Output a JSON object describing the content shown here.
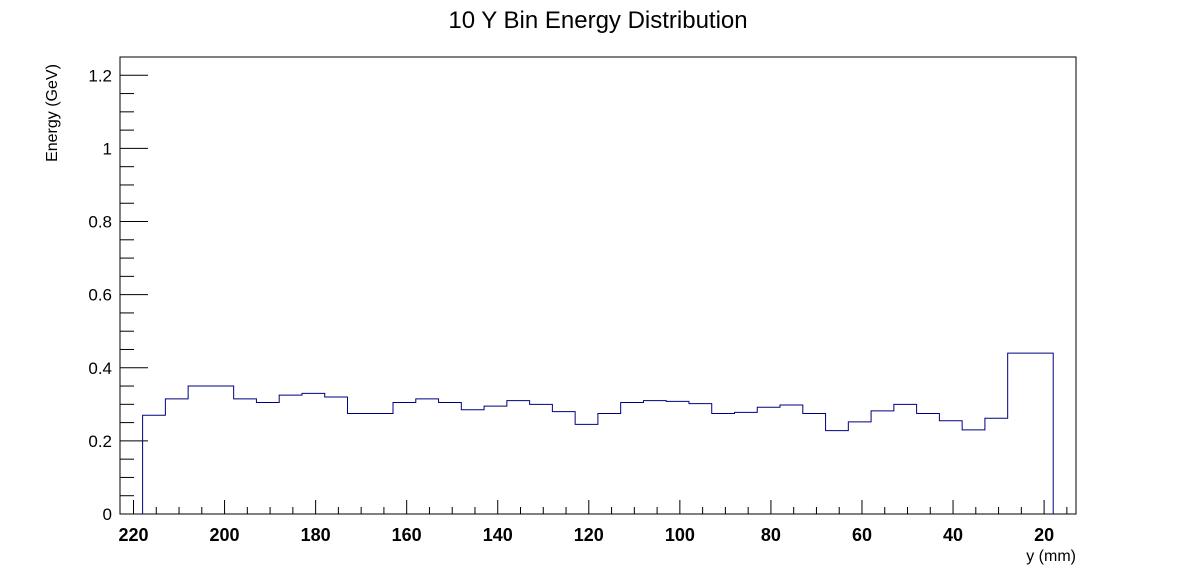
{
  "chart_data": {
    "type": "histogram",
    "title": "10 Y Bin Energy Distribution",
    "xlabel": "y (mm)",
    "ylabel": "Energy (GeV)",
    "x_reversed": true,
    "xlim": [
      220,
      10
    ],
    "ylim": [
      0,
      1.25
    ],
    "grid": false,
    "legend": "none",
    "line_color": "#000080",
    "x_ticks": [
      220,
      200,
      180,
      160,
      140,
      120,
      100,
      80,
      60,
      40,
      20
    ],
    "x_tick_labels": [
      "220",
      "200",
      "180",
      "160",
      "140",
      "120",
      "100",
      "80",
      "60",
      "40",
      "20"
    ],
    "y_ticks": [
      0,
      0.2,
      0.4,
      0.6,
      0.8,
      1,
      1.2
    ],
    "y_tick_labels": [
      "0",
      "0.2",
      "0.4",
      "0.6",
      "0.8",
      "1",
      "1.2"
    ],
    "bin_edges": [
      218,
      213,
      208,
      198,
      193,
      188,
      183,
      178,
      173,
      163,
      158,
      153,
      148,
      143,
      138,
      133,
      128,
      123,
      118,
      113,
      108,
      103,
      98,
      93,
      88,
      83,
      78,
      73,
      68,
      63,
      58,
      53,
      48,
      43,
      38,
      33,
      28,
      18
    ],
    "values": [
      0.27,
      0.315,
      0.35,
      0.315,
      0.305,
      0.325,
      0.33,
      0.32,
      0.275,
      0.305,
      0.315,
      0.305,
      0.285,
      0.295,
      0.31,
      0.3,
      0.28,
      0.245,
      0.275,
      0.305,
      0.31,
      0.308,
      0.302,
      0.275,
      0.278,
      0.292,
      0.298,
      0.275,
      0.228,
      0.252,
      0.282,
      0.3,
      0.275,
      0.255,
      0.23,
      0.262,
      0.44
    ]
  }
}
